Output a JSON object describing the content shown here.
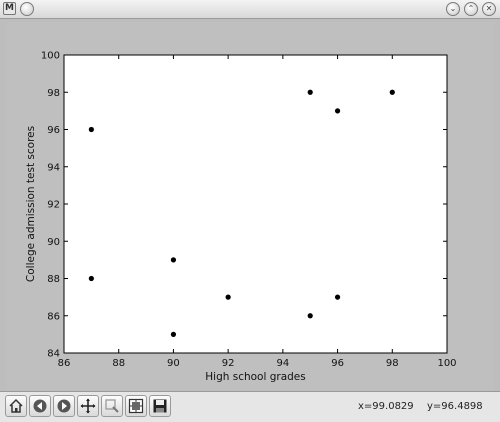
{
  "window": {
    "icon": "matplotlib-icon",
    "buttons": [
      {
        "name": "minimize-icon",
        "glyph": "⌄"
      },
      {
        "name": "maximize-icon",
        "glyph": "⌃"
      },
      {
        "name": "close-icon",
        "glyph": "✕"
      }
    ]
  },
  "chart_data": {
    "type": "scatter",
    "xlabel": "High school grades",
    "ylabel": "College admission test scores",
    "xlim": [
      86,
      100
    ],
    "ylim": [
      84,
      100
    ],
    "xticks": [
      86,
      88,
      90,
      92,
      94,
      96,
      98,
      100
    ],
    "yticks": [
      84,
      86,
      88,
      90,
      92,
      94,
      96,
      98,
      100
    ],
    "grid": false,
    "marker_color": "#000000",
    "points": [
      {
        "x": 87,
        "y": 96
      },
      {
        "x": 87,
        "y": 88
      },
      {
        "x": 90,
        "y": 89
      },
      {
        "x": 90,
        "y": 85
      },
      {
        "x": 92,
        "y": 87
      },
      {
        "x": 95,
        "y": 98
      },
      {
        "x": 95,
        "y": 86
      },
      {
        "x": 96,
        "y": 97
      },
      {
        "x": 96,
        "y": 87
      },
      {
        "x": 98,
        "y": 98
      }
    ]
  },
  "toolbar": {
    "tools": [
      {
        "name": "home-icon"
      },
      {
        "name": "back-icon"
      },
      {
        "name": "forward-icon"
      },
      {
        "name": "pan-icon"
      },
      {
        "name": "zoom-icon"
      },
      {
        "name": "subplots-icon"
      },
      {
        "name": "save-icon"
      }
    ],
    "x_readout": "x=99.0829",
    "y_readout": "y=96.4898"
  }
}
